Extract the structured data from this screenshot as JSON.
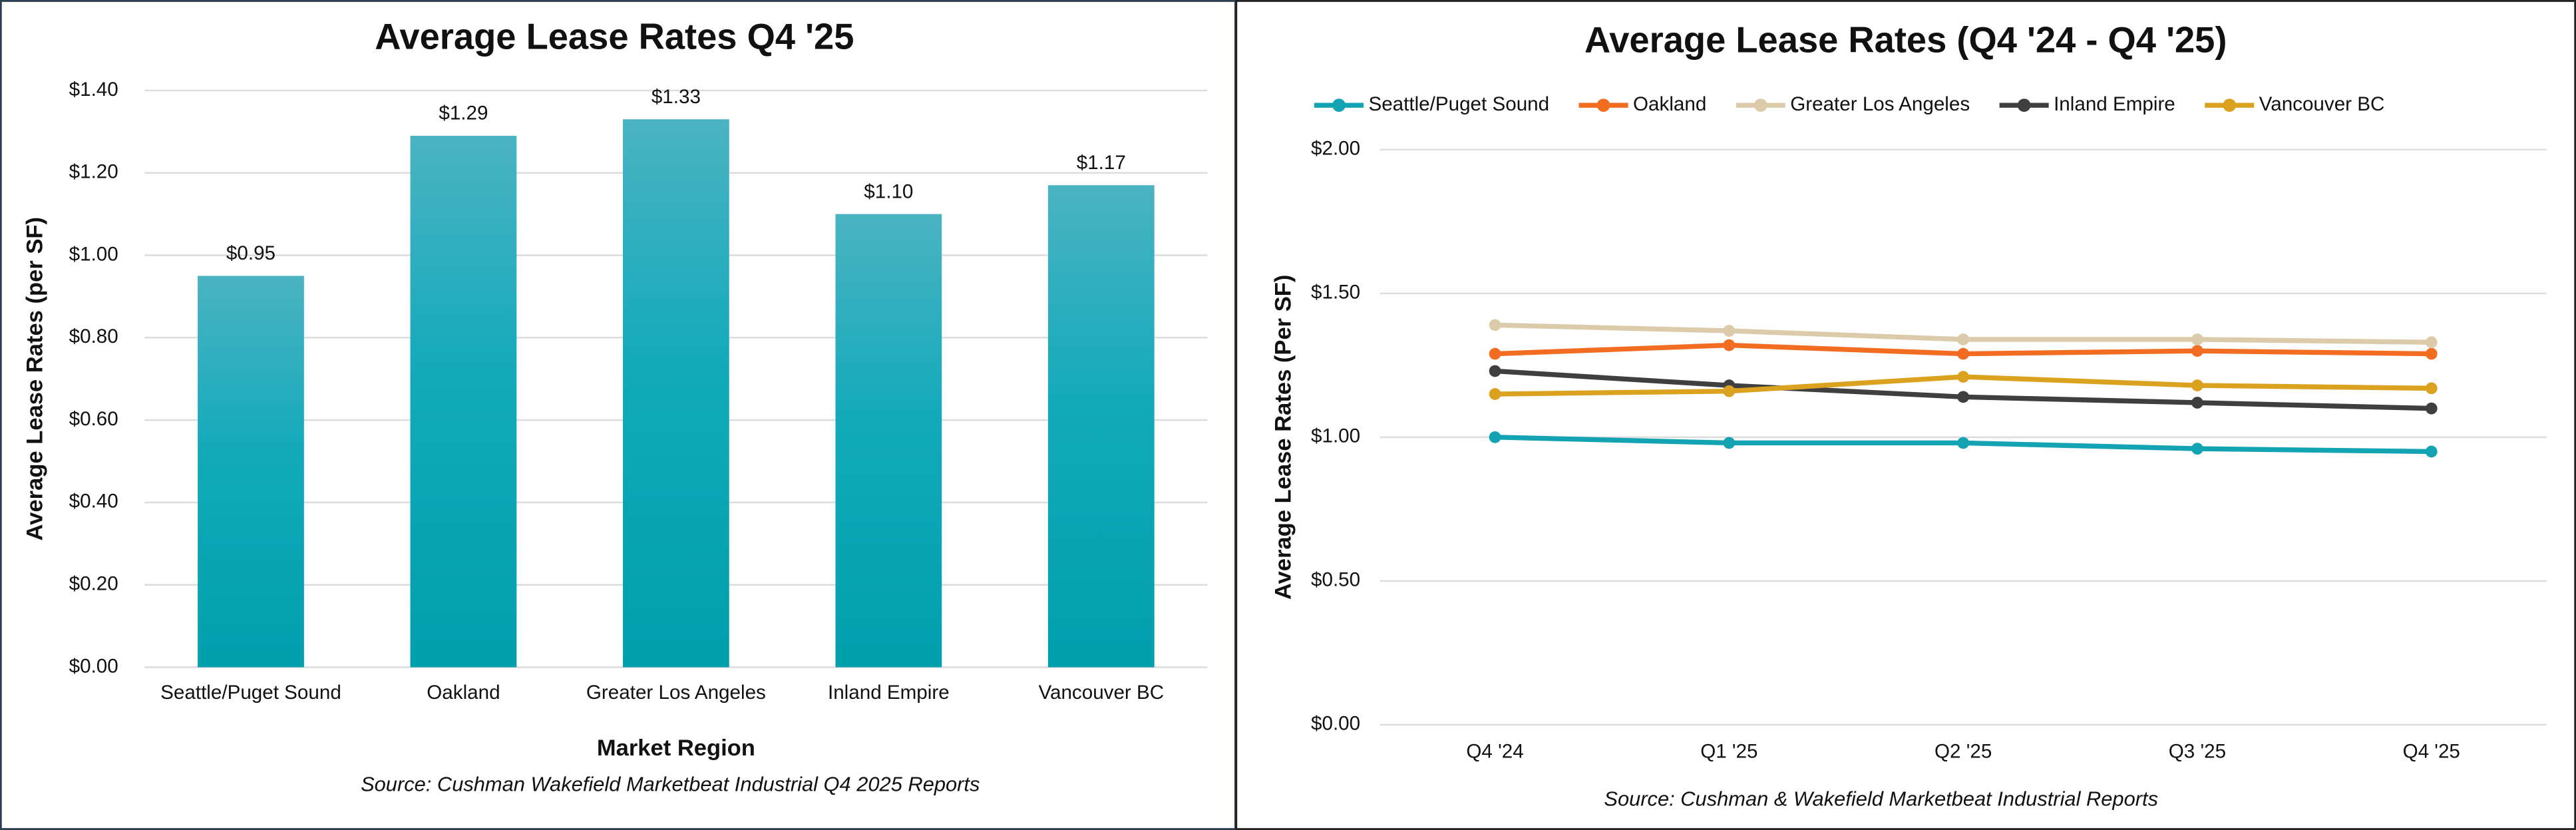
{
  "chart_data": [
    {
      "type": "bar",
      "title": "Average Lease Rates Q4 '25",
      "y_label": "Average Lease Rates (per SF)",
      "x_label": "Market Region",
      "source": "Source: Cushman Wakefield Marketbeat Industrial Q4 2025 Reports",
      "categories": [
        "Seattle/Puget Sound",
        "Oakland",
        "Greater Los Angeles",
        "Inland Empire",
        "Vancouver BC"
      ],
      "values": [
        0.95,
        1.29,
        1.33,
        1.1,
        1.17
      ],
      "value_labels": [
        "$0.95",
        "$1.29",
        "$1.33",
        "$1.10",
        "$1.17"
      ],
      "color": "#00a5b5",
      "ylim": [
        0,
        1.4
      ],
      "yticks": [
        {
          "value": 0,
          "label": "$0.00"
        },
        {
          "value": 0.2,
          "label": "$0.20"
        },
        {
          "value": 0.4,
          "label": "$0.40"
        },
        {
          "value": 0.6,
          "label": "$0.60"
        },
        {
          "value": 0.8,
          "label": "$0.80"
        },
        {
          "value": 1.0,
          "label": "$1.00"
        },
        {
          "value": 1.2,
          "label": "$1.20"
        },
        {
          "value": 1.4,
          "label": "$1.40"
        }
      ],
      "grid": true
    },
    {
      "type": "line",
      "title": "Average Lease Rates (Q4 '24 - Q4 '25)",
      "y_label": "Average Lease Rates (Per SF)",
      "source": "Source: Cushman & Wakefield Marketbeat Industrial Reports",
      "categories": [
        "Q4 '24",
        "Q1 '25",
        "Q2 '25",
        "Q3 '25",
        "Q4 '25"
      ],
      "series": [
        {
          "name": "Seattle/Puget Sound",
          "color": "#13a3b3",
          "values": [
            1.0,
            0.98,
            0.98,
            0.96,
            0.95
          ]
        },
        {
          "name": "Oakland",
          "color": "#f26c22",
          "values": [
            1.29,
            1.32,
            1.29,
            1.3,
            1.29
          ]
        },
        {
          "name": "Greater Los Angeles",
          "color": "#dccbaa",
          "values": [
            1.39,
            1.37,
            1.34,
            1.34,
            1.33
          ]
        },
        {
          "name": "Inland Empire",
          "color": "#3f3f3f",
          "values": [
            1.23,
            1.18,
            1.14,
            1.12,
            1.1
          ]
        },
        {
          "name": "Vancouver BC",
          "color": "#dba21f",
          "values": [
            1.15,
            1.16,
            1.21,
            1.18,
            1.17
          ]
        }
      ],
      "ylim": [
        0,
        2
      ],
      "yticks": [
        {
          "value": 0,
          "label": "$0.00"
        },
        {
          "value": 0.5,
          "label": "$0.50"
        },
        {
          "value": 1.0,
          "label": "$1.00"
        },
        {
          "value": 1.5,
          "label": "$1.50"
        },
        {
          "value": 2.0,
          "label": "$2.00"
        }
      ],
      "grid": true,
      "legend": "top"
    }
  ]
}
